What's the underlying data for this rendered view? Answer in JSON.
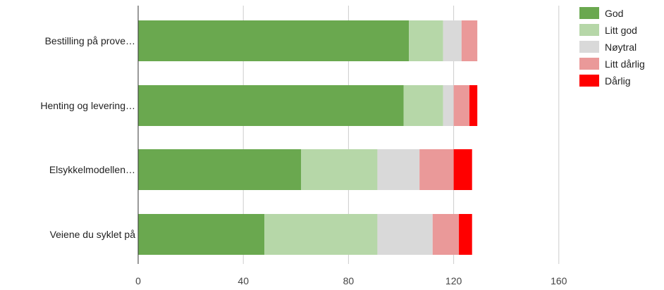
{
  "chart_data": {
    "type": "bar",
    "orientation": "horizontal",
    "stacked": true,
    "categories": [
      "Bestilling på prove…",
      "Henting og levering…",
      "Elsykkelmodellen…",
      "Veiene du syklet på"
    ],
    "series": [
      {
        "name": "God",
        "color": "#6aa84f",
        "values": [
          103,
          101,
          62,
          48
        ]
      },
      {
        "name": "Litt god",
        "color": "#b6d7a8",
        "values": [
          13,
          15,
          29,
          43
        ]
      },
      {
        "name": "Nøytral",
        "color": "#d9d9d9",
        "values": [
          7,
          4,
          16,
          21
        ]
      },
      {
        "name": "Litt dårlig",
        "color": "#ea9999",
        "values": [
          6,
          6,
          13,
          10
        ]
      },
      {
        "name": "Dårlig",
        "color": "#ff0000",
        "values": [
          0,
          3,
          7,
          5
        ]
      }
    ],
    "xticks": [
      0,
      40,
      80,
      120,
      160
    ],
    "xlim": [
      0,
      200
    ],
    "grid": true,
    "legend_position": "right",
    "title": "",
    "xlabel": "",
    "ylabel": ""
  }
}
